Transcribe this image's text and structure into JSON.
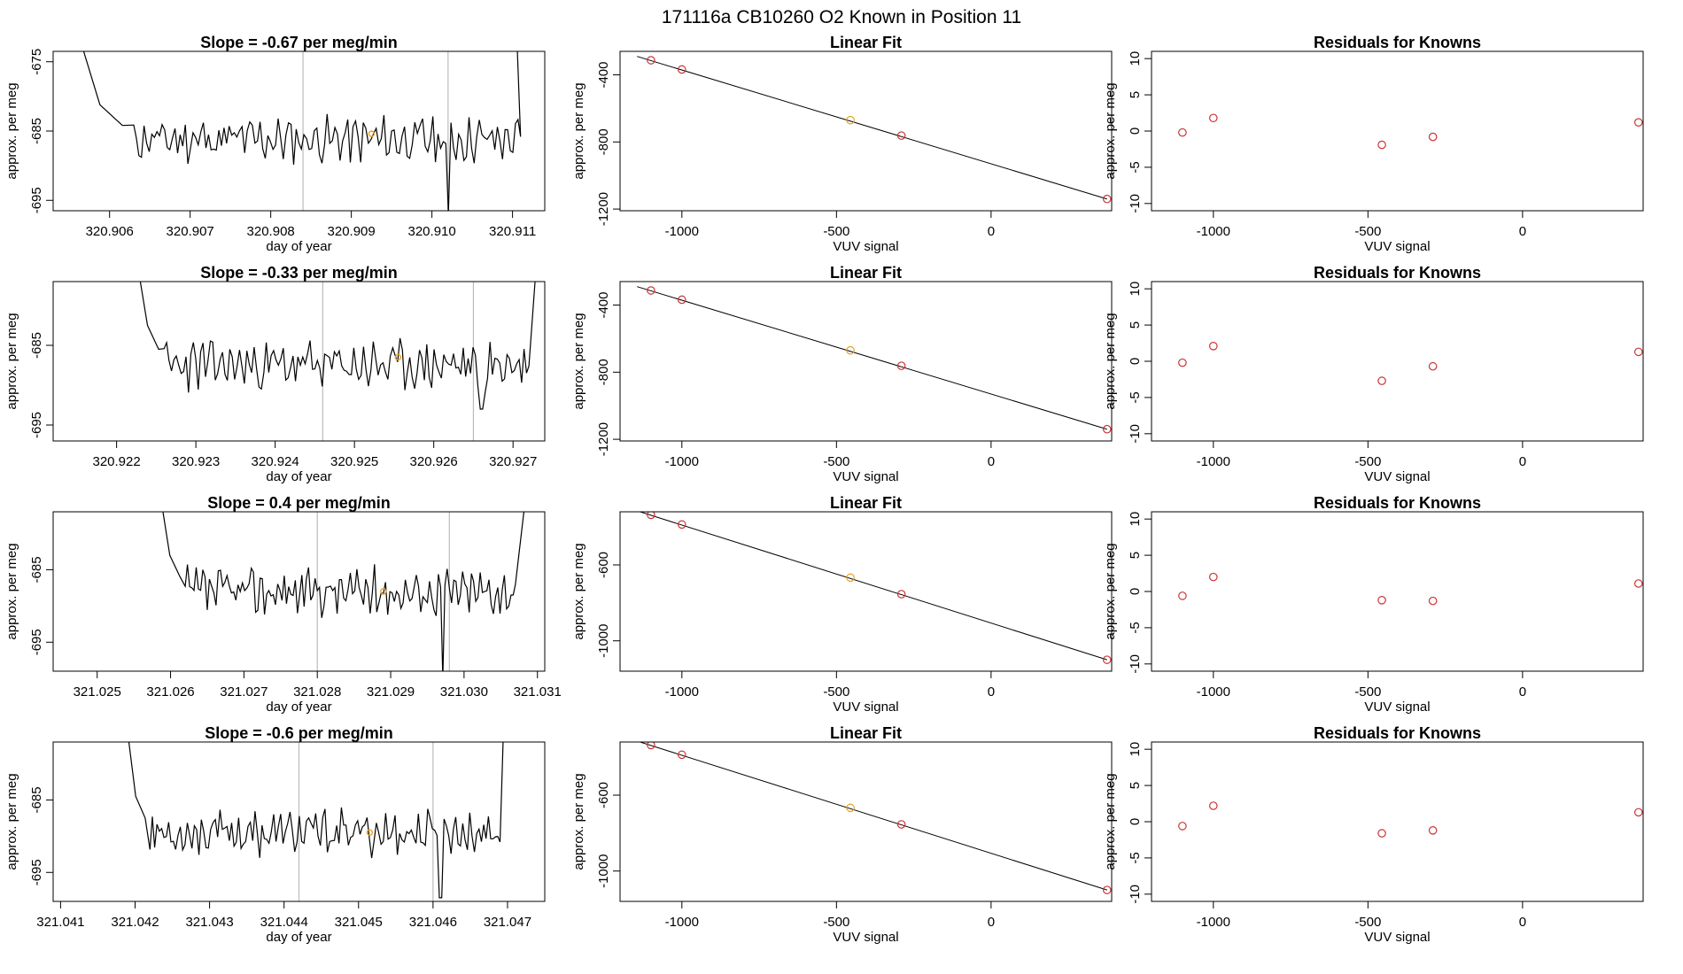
{
  "page": {
    "title": "171116a      CB10260    O2 Known in Position  11"
  },
  "colors": {
    "line": "#000000",
    "points": "#cc3333",
    "highlight": "#e8a020",
    "vline": "#bbbbbb"
  },
  "chart_data": [
    {
      "type": "line",
      "title": "Slope =  -0.67  per meg/min",
      "xlabel": "day of year",
      "ylabel": "approx. per meg",
      "xlim": [
        320.9053,
        320.9114
      ],
      "ylim": [
        -696.5,
        -673.5
      ],
      "xticks": [
        "320.906",
        "320.907",
        "320.908",
        "320.909",
        "320.910",
        "320.911"
      ],
      "yticks": [
        "-675",
        "-685",
        "-695"
      ],
      "trace": {
        "x_start": 320.9063,
        "x_end": 320.9111,
        "base": -686.2,
        "amp": 1.6,
        "seed": 11,
        "left_shoulder": 320.9056,
        "right_shoulder": 320.91105,
        "spike_x": 320.9102,
        "spike_y": -697
      },
      "vlines": [
        320.9084,
        320.9102
      ],
      "highlight_point": {
        "x": 320.90925,
        "y": -685.4
      }
    },
    {
      "type": "scatter",
      "title": "Linear Fit",
      "xlabel": "VUV signal",
      "ylabel": "approx. per meg",
      "xlim": [
        -1200,
        390
      ],
      "ylim": [
        -1210,
        -260
      ],
      "xticks": [
        "-1000",
        "-500",
        "0"
      ],
      "yticks": [
        "-400",
        "-800",
        "-1200"
      ],
      "points": [
        [
          -1100,
          -313
        ],
        [
          -1000,
          -368
        ],
        [
          -455,
          -670
        ],
        [
          -290,
          -762
        ],
        [
          375,
          -1140
        ]
      ],
      "highlight_index": 2,
      "fit_line": [
        [
          -1145,
          -290
        ],
        [
          375,
          -1140
        ]
      ]
    },
    {
      "type": "scatter",
      "title": "Residuals for Knowns",
      "xlabel": "VUV signal",
      "ylabel": "approx. per meg",
      "xlim": [
        -1200,
        390
      ],
      "ylim": [
        -11,
        11
      ],
      "xticks": [
        "-1000",
        "-500",
        "0"
      ],
      "yticks": [
        "10",
        "5",
        "0",
        "-5",
        "-10"
      ],
      "points": [
        [
          -1100,
          -0.2
        ],
        [
          -1000,
          1.8
        ],
        [
          -455,
          -1.9
        ],
        [
          -290,
          -0.8
        ],
        [
          375,
          1.2
        ]
      ]
    },
    {
      "type": "line",
      "title": "Slope =  -0.33  per meg/min",
      "xlabel": "day of year",
      "ylabel": "approx. per meg",
      "xlim": [
        320.9212,
        320.9274
      ],
      "ylim": [
        -697,
        -677
      ],
      "xticks": [
        "320.922",
        "320.923",
        "320.924",
        "320.925",
        "320.926",
        "320.927"
      ],
      "yticks": [
        "-685",
        "-695"
      ],
      "trace": {
        "x_start": 320.9226,
        "x_end": 320.9272,
        "base": -687.5,
        "amp": 1.5,
        "seed": 23,
        "left_shoulder": 320.92225,
        "right_shoulder": 320.9273,
        "spike_x": 320.9266,
        "spike_y": -693
      },
      "vlines": [
        320.9246,
        320.9265
      ],
      "highlight_point": {
        "x": 320.92555,
        "y": -686.5
      }
    },
    {
      "type": "scatter",
      "title": "Linear Fit",
      "xlabel": "VUV signal",
      "ylabel": "approx. per meg",
      "xlim": [
        -1200,
        390
      ],
      "ylim": [
        -1210,
        -260
      ],
      "xticks": [
        "-1000",
        "-500",
        "0"
      ],
      "yticks": [
        "-400",
        "-800",
        "-1200"
      ],
      "points": [
        [
          -1100,
          -313
        ],
        [
          -1000,
          -368
        ],
        [
          -455,
          -670
        ],
        [
          -290,
          -762
        ],
        [
          375,
          -1140
        ]
      ],
      "highlight_index": 2,
      "fit_line": [
        [
          -1145,
          -290
        ],
        [
          375,
          -1140
        ]
      ]
    },
    {
      "type": "scatter",
      "title": "Residuals for Knowns",
      "xlabel": "VUV signal",
      "ylabel": "approx. per meg",
      "xlim": [
        -1200,
        390
      ],
      "ylim": [
        -11,
        11
      ],
      "xticks": [
        "-1000",
        "-500",
        "0"
      ],
      "yticks": [
        "10",
        "5",
        "0",
        "-5",
        "-10"
      ],
      "points": [
        [
          -1100,
          -0.2
        ],
        [
          -1000,
          2.1
        ],
        [
          -455,
          -2.7
        ],
        [
          -290,
          -0.7
        ],
        [
          375,
          1.3
        ]
      ]
    },
    {
      "type": "line",
      "title": "Slope =  0.4  per meg/min",
      "xlabel": "day of year",
      "ylabel": "approx. per meg",
      "xlim": [
        321.0244,
        321.0311
      ],
      "ylim": [
        -699,
        -677
      ],
      "xticks": [
        "321.025",
        "321.026",
        "321.027",
        "321.028",
        "321.029",
        "321.030",
        "321.031"
      ],
      "yticks": [
        "-685",
        "-695"
      ],
      "trace": {
        "x_start": 321.0262,
        "x_end": 321.0307,
        "base": -688,
        "amp": 1.6,
        "seed": 37,
        "left_shoulder": 321.02585,
        "right_shoulder": 321.03085,
        "spike_x": 321.0297,
        "spike_y": -700
      },
      "vlines": [
        321.028,
        321.0298
      ],
      "highlight_point": {
        "x": 321.0289,
        "y": -688
      }
    },
    {
      "type": "scatter",
      "title": "Linear Fit",
      "xlabel": "VUV signal",
      "ylabel": "approx. per meg",
      "xlim": [
        -1200,
        390
      ],
      "ylim": [
        -1160,
        -320
      ],
      "xticks": [
        "-1000",
        "-500",
        "0"
      ],
      "yticks": [
        "-600",
        "-1000"
      ],
      "points": [
        [
          -1100,
          -336
        ],
        [
          -1000,
          -387
        ],
        [
          -455,
          -667
        ],
        [
          -290,
          -754
        ],
        [
          375,
          -1100
        ]
      ],
      "highlight_index": 2,
      "fit_line": [
        [
          -1145,
          -315
        ],
        [
          375,
          -1100
        ]
      ]
    },
    {
      "type": "scatter",
      "title": "Residuals for Knowns",
      "xlabel": "VUV signal",
      "ylabel": "approx. per meg",
      "xlim": [
        -1200,
        390
      ],
      "ylim": [
        -11,
        11
      ],
      "xticks": [
        "-1000",
        "-500",
        "0"
      ],
      "yticks": [
        "10",
        "5",
        "0",
        "-5",
        "-10"
      ],
      "points": [
        [
          -1100,
          -0.6
        ],
        [
          -1000,
          2.0
        ],
        [
          -455,
          -1.2
        ],
        [
          -290,
          -1.3
        ],
        [
          375,
          1.1
        ]
      ]
    },
    {
      "type": "line",
      "title": "Slope =  -0.6  per meg/min",
      "xlabel": "day of year",
      "ylabel": "approx. per meg",
      "xlim": [
        321.0409,
        321.0475
      ],
      "ylim": [
        -699,
        -677
      ],
      "xticks": [
        "321.041",
        "321.042",
        "321.043",
        "321.044",
        "321.045",
        "321.046",
        "321.047"
      ],
      "yticks": [
        "-685",
        "-695"
      ],
      "trace": {
        "x_start": 321.0422,
        "x_end": 321.0469,
        "base": -689.5,
        "amp": 1.5,
        "seed": 53,
        "left_shoulder": 321.04188,
        "right_shoulder": 321.04695,
        "spike_x": 321.0461,
        "spike_y": -698.5
      },
      "vlines": [
        321.0442,
        321.046
      ],
      "highlight_point": {
        "x": 321.04515,
        "y": -689.5
      }
    },
    {
      "type": "scatter",
      "title": "Linear Fit",
      "xlabel": "VUV signal",
      "ylabel": "approx. per meg",
      "xlim": [
        -1200,
        390
      ],
      "ylim": [
        -1160,
        -320
      ],
      "xticks": [
        "-1000",
        "-500",
        "0"
      ],
      "yticks": [
        "-600",
        "-1000"
      ],
      "points": [
        [
          -1100,
          -336
        ],
        [
          -1000,
          -387
        ],
        [
          -455,
          -667
        ],
        [
          -290,
          -754
        ],
        [
          375,
          -1100
        ]
      ],
      "highlight_index": 2,
      "fit_line": [
        [
          -1145,
          -315
        ],
        [
          375,
          -1100
        ]
      ]
    },
    {
      "type": "scatter",
      "title": "Residuals for Knowns",
      "xlabel": "VUV signal",
      "ylabel": "approx. per meg",
      "xlim": [
        -1200,
        390
      ],
      "ylim": [
        -11,
        11
      ],
      "xticks": [
        "-1000",
        "-500",
        "0"
      ],
      "yticks": [
        "10",
        "5",
        "0",
        "-5",
        "-10"
      ],
      "points": [
        [
          -1100,
          -0.6
        ],
        [
          -1000,
          2.2
        ],
        [
          -455,
          -1.6
        ],
        [
          -290,
          -1.2
        ],
        [
          375,
          1.3
        ]
      ]
    }
  ]
}
